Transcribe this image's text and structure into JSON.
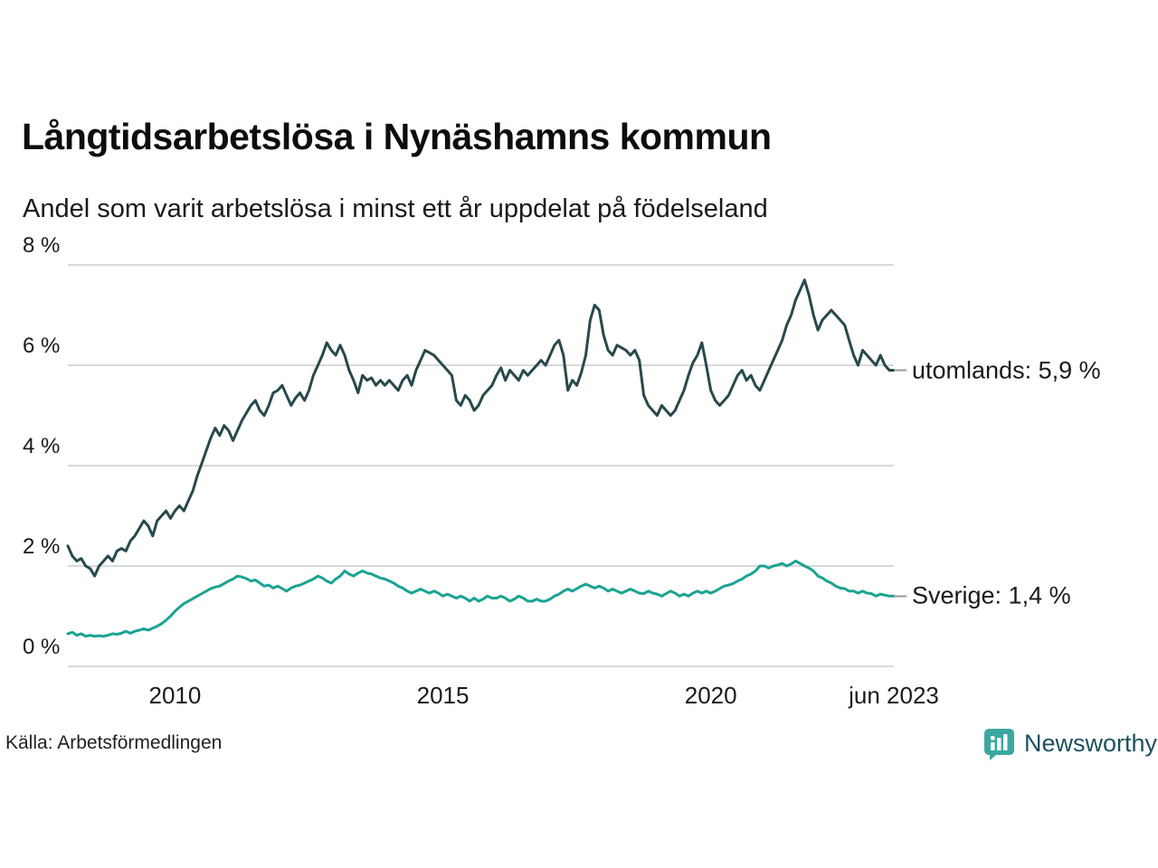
{
  "title": "Långtidsarbetslösa i Nynäshamns kommun",
  "subtitle": "Andel som varit arbetslösa i minst ett år uppdelat på födelseland",
  "source": "Källa: Arbetsförmedlingen",
  "branding": {
    "name": "Newsworthy",
    "logo_icon": "bar-chart-speech-bubble-icon",
    "brand_color": "#3aa8a0",
    "text_color": "#1d4f5e"
  },
  "chart_data": {
    "type": "line",
    "title": "Långtidsarbetslösa i Nynäshamns kommun",
    "subtitle": "Andel som varit arbetslösa i minst ett år uppdelat på födelseland",
    "xlabel": "",
    "ylabel": "",
    "grid": true,
    "legend": "end-labels-right",
    "xlim": [
      2008,
      2023.4167
    ],
    "ylim": [
      0,
      8
    ],
    "x_start_year": 2008,
    "x_step_months": 1,
    "y_ticks": [
      {
        "value": 0,
        "label": "0 %"
      },
      {
        "value": 2,
        "label": "2 %"
      },
      {
        "value": 4,
        "label": "4 %"
      },
      {
        "value": 6,
        "label": "6 %"
      },
      {
        "value": 8,
        "label": "8 %"
      }
    ],
    "x_ticks": [
      {
        "value": 2010,
        "label": "2010"
      },
      {
        "value": 2015,
        "label": "2015"
      },
      {
        "value": 2020,
        "label": "2020"
      },
      {
        "value": 2023.4167,
        "label": "jun 2023"
      }
    ],
    "series": [
      {
        "name": "utomlands",
        "color": "#27494c",
        "end_label": "utomlands: 5,9 %",
        "last_value": 5.9,
        "values": [
          2.4,
          2.2,
          2.1,
          2.15,
          2.0,
          1.95,
          1.8,
          2.0,
          2.1,
          2.2,
          2.1,
          2.3,
          2.35,
          2.3,
          2.5,
          2.6,
          2.75,
          2.9,
          2.8,
          2.6,
          2.9,
          3.0,
          3.1,
          2.95,
          3.1,
          3.2,
          3.1,
          3.3,
          3.5,
          3.8,
          4.05,
          4.3,
          4.55,
          4.75,
          4.6,
          4.8,
          4.7,
          4.5,
          4.7,
          4.9,
          5.05,
          5.2,
          5.3,
          5.1,
          5.0,
          5.2,
          5.45,
          5.5,
          5.6,
          5.4,
          5.2,
          5.35,
          5.45,
          5.3,
          5.5,
          5.8,
          6.0,
          6.2,
          6.45,
          6.3,
          6.2,
          6.4,
          6.2,
          5.9,
          5.7,
          5.45,
          5.8,
          5.7,
          5.75,
          5.6,
          5.7,
          5.6,
          5.7,
          5.6,
          5.5,
          5.7,
          5.8,
          5.6,
          5.9,
          6.1,
          6.3,
          6.25,
          6.2,
          6.1,
          6.0,
          5.9,
          5.8,
          5.3,
          5.2,
          5.4,
          5.3,
          5.1,
          5.2,
          5.4,
          5.5,
          5.6,
          5.8,
          5.95,
          5.7,
          5.9,
          5.8,
          5.7,
          5.9,
          5.8,
          5.9,
          6.0,
          6.1,
          6.0,
          6.2,
          6.4,
          6.5,
          6.2,
          5.5,
          5.7,
          5.6,
          5.85,
          6.2,
          6.9,
          7.2,
          7.1,
          6.6,
          6.3,
          6.2,
          6.4,
          6.35,
          6.3,
          6.2,
          6.3,
          6.1,
          5.4,
          5.2,
          5.1,
          5.0,
          5.2,
          5.1,
          5.0,
          5.1,
          5.3,
          5.5,
          5.8,
          6.05,
          6.2,
          6.45,
          6.0,
          5.5,
          5.3,
          5.2,
          5.3,
          5.4,
          5.6,
          5.8,
          5.9,
          5.7,
          5.8,
          5.6,
          5.5,
          5.7,
          5.9,
          6.1,
          6.3,
          6.5,
          6.8,
          7.0,
          7.3,
          7.5,
          7.7,
          7.4,
          7.0,
          6.7,
          6.9,
          7.0,
          7.1,
          7.0,
          6.9,
          6.8,
          6.5,
          6.2,
          6.0,
          6.3,
          6.2,
          6.1,
          6.0,
          6.2,
          6.0,
          5.9,
          5.9
        ]
      },
      {
        "name": "Sverige",
        "color": "#1aa392",
        "end_label": "Sverige: 1,4 %",
        "last_value": 1.4,
        "values": [
          0.65,
          0.68,
          0.62,
          0.65,
          0.6,
          0.62,
          0.6,
          0.61,
          0.6,
          0.62,
          0.65,
          0.64,
          0.66,
          0.7,
          0.66,
          0.7,
          0.72,
          0.75,
          0.72,
          0.76,
          0.8,
          0.85,
          0.92,
          1.0,
          1.1,
          1.18,
          1.25,
          1.3,
          1.35,
          1.4,
          1.45,
          1.5,
          1.55,
          1.58,
          1.6,
          1.65,
          1.7,
          1.74,
          1.8,
          1.78,
          1.75,
          1.7,
          1.72,
          1.66,
          1.6,
          1.62,
          1.56,
          1.6,
          1.55,
          1.5,
          1.56,
          1.6,
          1.62,
          1.66,
          1.7,
          1.74,
          1.8,
          1.76,
          1.7,
          1.66,
          1.74,
          1.8,
          1.9,
          1.84,
          1.8,
          1.86,
          1.9,
          1.86,
          1.84,
          1.8,
          1.76,
          1.74,
          1.7,
          1.66,
          1.6,
          1.56,
          1.5,
          1.46,
          1.5,
          1.54,
          1.5,
          1.46,
          1.5,
          1.46,
          1.4,
          1.44,
          1.4,
          1.36,
          1.4,
          1.36,
          1.3,
          1.36,
          1.3,
          1.34,
          1.4,
          1.36,
          1.36,
          1.4,
          1.36,
          1.3,
          1.34,
          1.4,
          1.36,
          1.3,
          1.3,
          1.34,
          1.3,
          1.3,
          1.34,
          1.4,
          1.44,
          1.5,
          1.54,
          1.5,
          1.55,
          1.6,
          1.64,
          1.6,
          1.56,
          1.6,
          1.56,
          1.5,
          1.54,
          1.5,
          1.46,
          1.5,
          1.54,
          1.5,
          1.46,
          1.45,
          1.5,
          1.46,
          1.44,
          1.4,
          1.45,
          1.5,
          1.46,
          1.4,
          1.44,
          1.4,
          1.46,
          1.5,
          1.46,
          1.5,
          1.46,
          1.5,
          1.55,
          1.6,
          1.62,
          1.65,
          1.7,
          1.74,
          1.8,
          1.84,
          1.9,
          2.0,
          2.0,
          1.96,
          2.0,
          2.02,
          2.05,
          2.0,
          2.04,
          2.1,
          2.05,
          2.0,
          1.96,
          1.9,
          1.8,
          1.76,
          1.7,
          1.66,
          1.6,
          1.56,
          1.55,
          1.5,
          1.5,
          1.46,
          1.5,
          1.46,
          1.45,
          1.4,
          1.44,
          1.42,
          1.4,
          1.4
        ]
      }
    ]
  }
}
